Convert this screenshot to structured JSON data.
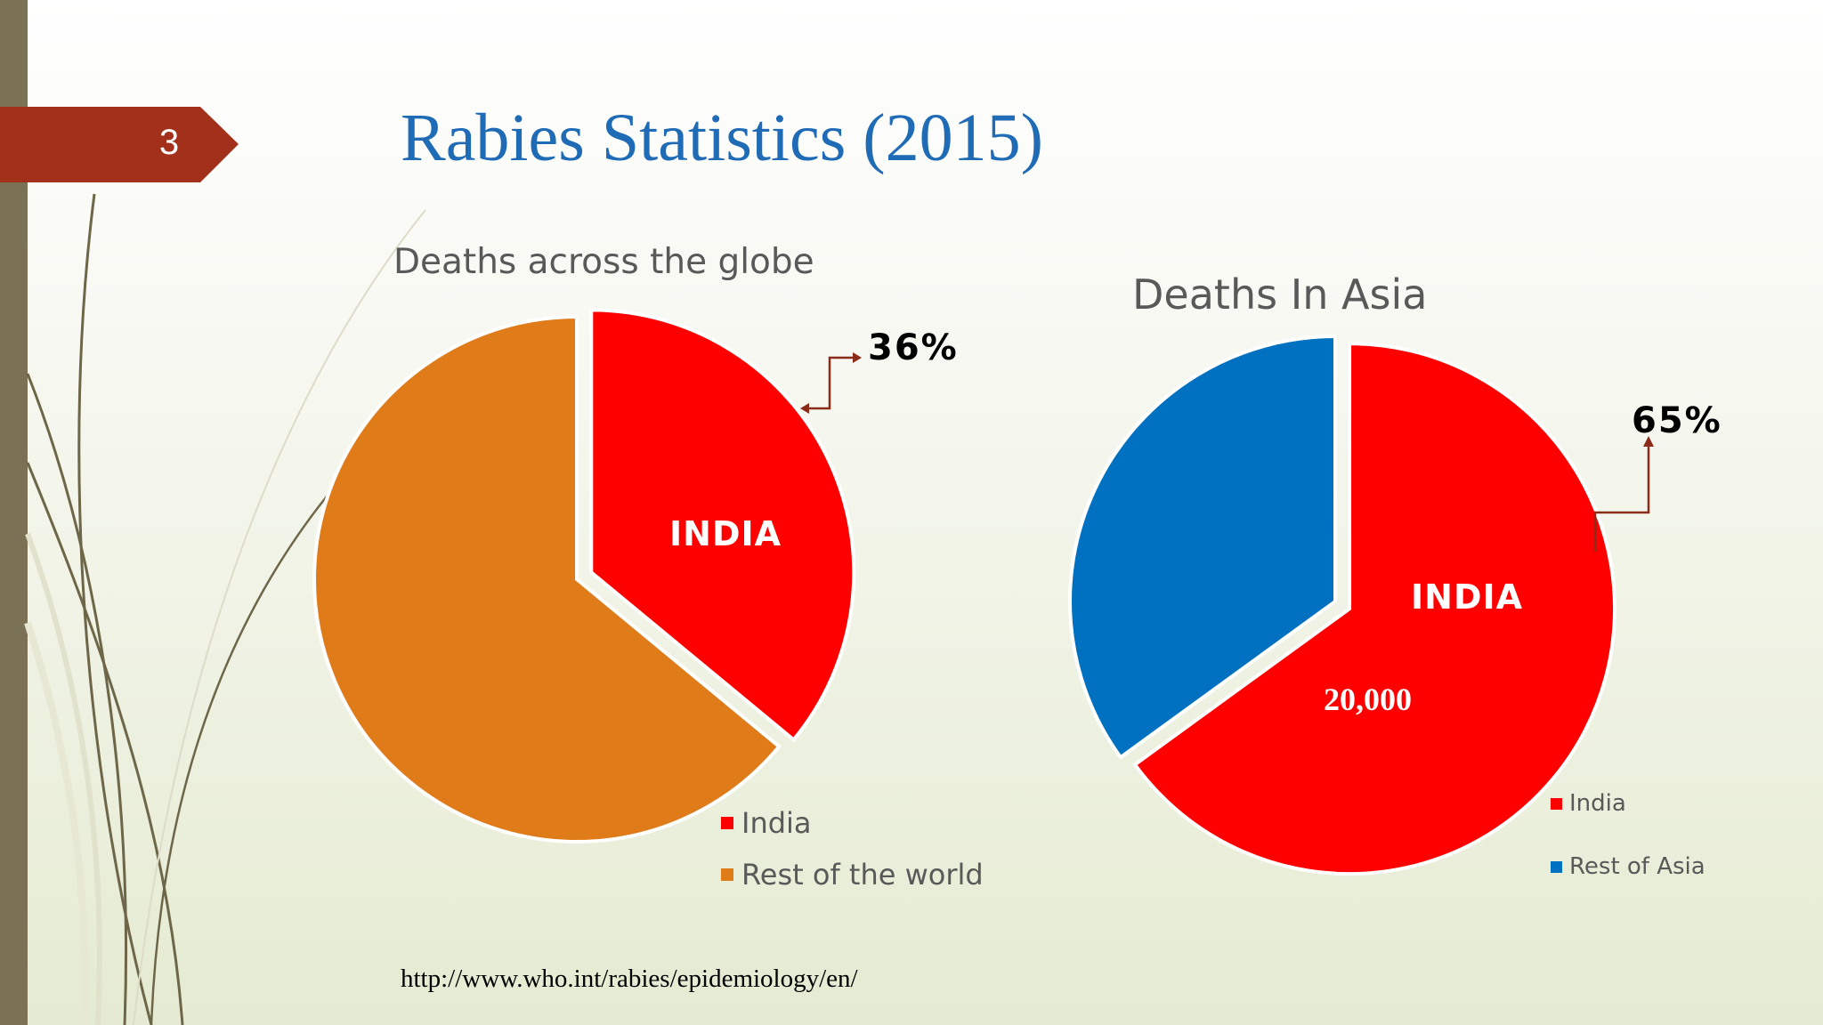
{
  "slide": {
    "number": "3",
    "title": "Rabies Statistics (2015)",
    "source": "http://www.who.int/rabies/epidemiology/en/"
  },
  "colors": {
    "india": "#ff0000",
    "rest_world": "#e07b1a",
    "rest_asia": "#0070c0",
    "title": "#1f6bb5",
    "slide_tag": "#a3301a",
    "left_bar": "#7b7256"
  },
  "chart_data": [
    {
      "type": "pie",
      "title": "Deaths across the globe",
      "categories": [
        "India",
        "Rest of the world"
      ],
      "values": [
        36,
        64
      ],
      "unit": "%",
      "exploded": "India",
      "slice_label": "INDIA",
      "callout": "36%",
      "legend_placement": "bottom-right"
    },
    {
      "type": "pie",
      "title": "Deaths In Asia",
      "categories": [
        "India",
        "Rest of Asia"
      ],
      "values": [
        65,
        35
      ],
      "unit": "%",
      "exploded": "India",
      "slice_label": "INDIA",
      "slice_value": "20,000",
      "callout": "65%",
      "legend_placement": "right"
    }
  ]
}
